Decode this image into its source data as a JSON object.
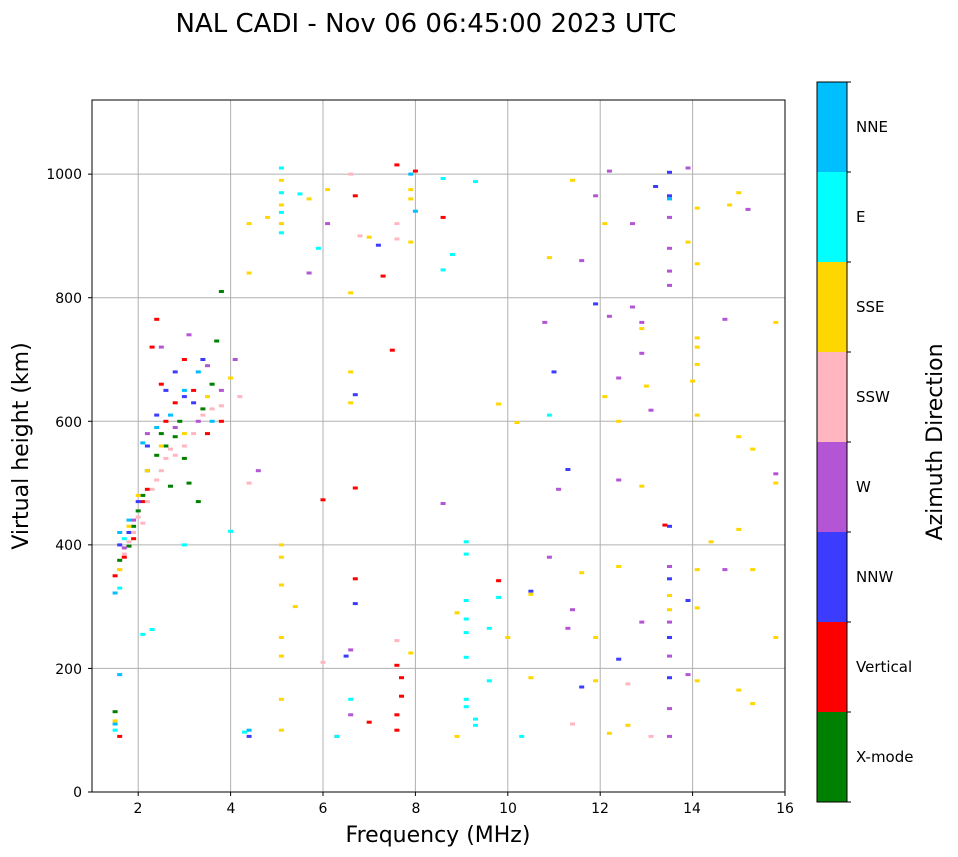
{
  "chart_data": {
    "type": "scatter",
    "title": "NAL CADI - Nov 06 06:45:00 2023 UTC",
    "xlabel": "Frequency (MHz)",
    "ylabel": "Virtual height (km)",
    "xlim": [
      1,
      16
    ],
    "ylim": [
      0,
      1120
    ],
    "xticks": [
      "2",
      "4",
      "6",
      "8",
      "10",
      "12",
      "14",
      "16"
    ],
    "yticks": [
      "0",
      "200",
      "400",
      "600",
      "800",
      "1000"
    ],
    "grid": true,
    "colorbar": {
      "label": "Azimuth Direction",
      "categories": [
        {
          "name": "X-mode",
          "color": "#008000"
        },
        {
          "name": "Vertical",
          "color": "#ff0000"
        },
        {
          "name": "NNW",
          "color": "#3c3cff"
        },
        {
          "name": "W",
          "color": "#b455d6"
        },
        {
          "name": "SSW",
          "color": "#ffb6c1"
        },
        {
          "name": "SSE",
          "color": "#ffd700"
        },
        {
          "name": "E",
          "color": "#00ffff"
        },
        {
          "name": "NNE",
          "color": "#00bfff"
        }
      ]
    },
    "series": [
      {
        "name": "X-mode",
        "points": [
          [
            1.5,
            130
          ],
          [
            1.6,
            375
          ],
          [
            1.8,
            398
          ],
          [
            1.9,
            430
          ],
          [
            2.0,
            455
          ],
          [
            2.1,
            480
          ],
          [
            2.2,
            520
          ],
          [
            2.4,
            545
          ],
          [
            2.5,
            580
          ],
          [
            2.6,
            560
          ],
          [
            2.7,
            495
          ],
          [
            2.8,
            575
          ],
          [
            2.9,
            600
          ],
          [
            3.0,
            540
          ],
          [
            3.1,
            500
          ],
          [
            3.3,
            470
          ],
          [
            3.4,
            620
          ],
          [
            3.6,
            660
          ],
          [
            3.8,
            810
          ],
          [
            3.7,
            730
          ]
        ]
      },
      {
        "name": "Vertical",
        "points": [
          [
            1.5,
            350
          ],
          [
            1.6,
            90
          ],
          [
            1.7,
            380
          ],
          [
            1.9,
            410
          ],
          [
            2.1,
            470
          ],
          [
            2.2,
            490
          ],
          [
            2.3,
            720
          ],
          [
            2.4,
            765
          ],
          [
            2.5,
            660
          ],
          [
            2.6,
            600
          ],
          [
            2.8,
            630
          ],
          [
            3.0,
            700
          ],
          [
            3.2,
            650
          ],
          [
            3.5,
            580
          ],
          [
            3.8,
            600
          ],
          [
            6.0,
            473
          ],
          [
            6.3,
            90
          ],
          [
            6.7,
            965
          ],
          [
            6.7,
            345
          ],
          [
            6.7,
            492
          ],
          [
            7.0,
            113
          ],
          [
            7.3,
            835
          ],
          [
            7.5,
            715
          ],
          [
            7.6,
            205
          ],
          [
            7.6,
            1015
          ],
          [
            7.7,
            155
          ],
          [
            7.7,
            185
          ],
          [
            7.6,
            100
          ],
          [
            7.6,
            125
          ],
          [
            8.0,
            1005
          ],
          [
            8.6,
            930
          ],
          [
            9.8,
            342
          ],
          [
            13.4,
            432
          ]
        ]
      },
      {
        "name": "NNW",
        "points": [
          [
            1.6,
            400
          ],
          [
            1.8,
            420
          ],
          [
            2.0,
            470
          ],
          [
            2.2,
            560
          ],
          [
            2.4,
            610
          ],
          [
            2.6,
            650
          ],
          [
            2.8,
            680
          ],
          [
            3.0,
            640
          ],
          [
            3.2,
            630
          ],
          [
            3.4,
            700
          ],
          [
            4.4,
            90
          ],
          [
            6.5,
            220
          ],
          [
            6.7,
            643
          ],
          [
            6.7,
            305
          ],
          [
            7.2,
            885
          ],
          [
            10.5,
            325
          ],
          [
            11.0,
            680
          ],
          [
            11.3,
            522
          ],
          [
            11.6,
            170
          ],
          [
            11.9,
            790
          ],
          [
            12.4,
            215
          ],
          [
            13.2,
            980
          ],
          [
            13.5,
            1003
          ],
          [
            13.5,
            965
          ],
          [
            13.5,
            345
          ],
          [
            13.5,
            250
          ],
          [
            13.5,
            185
          ],
          [
            13.5,
            430
          ],
          [
            13.9,
            310
          ]
        ]
      },
      {
        "name": "W",
        "points": [
          [
            1.7,
            395
          ],
          [
            1.9,
            440
          ],
          [
            2.2,
            580
          ],
          [
            2.5,
            720
          ],
          [
            2.8,
            590
          ],
          [
            3.1,
            740
          ],
          [
            3.3,
            600
          ],
          [
            3.5,
            690
          ],
          [
            3.8,
            650
          ],
          [
            4.1,
            700
          ],
          [
            4.6,
            520
          ],
          [
            5.7,
            840
          ],
          [
            6.1,
            920
          ],
          [
            6.6,
            125
          ],
          [
            6.6,
            230
          ],
          [
            8.6,
            467
          ],
          [
            10.8,
            760
          ],
          [
            10.9,
            380
          ],
          [
            11.1,
            490
          ],
          [
            11.3,
            265
          ],
          [
            11.4,
            295
          ],
          [
            11.6,
            860
          ],
          [
            11.9,
            965
          ],
          [
            12.2,
            1005
          ],
          [
            12.2,
            770
          ],
          [
            12.4,
            670
          ],
          [
            12.4,
            505
          ],
          [
            12.7,
            920
          ],
          [
            12.7,
            785
          ],
          [
            12.9,
            760
          ],
          [
            12.9,
            710
          ],
          [
            12.9,
            275
          ],
          [
            13.1,
            618
          ],
          [
            13.5,
            930
          ],
          [
            13.5,
            880
          ],
          [
            13.5,
            843
          ],
          [
            13.5,
            820
          ],
          [
            13.5,
            365
          ],
          [
            13.5,
            275
          ],
          [
            13.5,
            220
          ],
          [
            13.5,
            135
          ],
          [
            13.5,
            90
          ],
          [
            13.9,
            190
          ],
          [
            13.9,
            1010
          ],
          [
            14.7,
            360
          ],
          [
            14.7,
            765
          ],
          [
            15.2,
            943
          ],
          [
            15.8,
            515
          ]
        ]
      },
      {
        "name": "SSW",
        "points": [
          [
            1.6,
            360
          ],
          [
            1.7,
            385
          ],
          [
            1.8,
            405
          ],
          [
            1.9,
            420
          ],
          [
            2.0,
            445
          ],
          [
            2.1,
            435
          ],
          [
            2.2,
            470
          ],
          [
            2.3,
            490
          ],
          [
            2.4,
            505
          ],
          [
            2.5,
            520
          ],
          [
            2.6,
            540
          ],
          [
            2.7,
            555
          ],
          [
            2.8,
            545
          ],
          [
            3.0,
            560
          ],
          [
            3.2,
            580
          ],
          [
            3.4,
            610
          ],
          [
            3.6,
            620
          ],
          [
            3.8,
            625
          ],
          [
            4.2,
            640
          ],
          [
            4.4,
            500
          ],
          [
            6.0,
            210
          ],
          [
            6.6,
            1000
          ],
          [
            6.8,
            900
          ],
          [
            7.6,
            920
          ],
          [
            7.6,
            895
          ],
          [
            7.6,
            245
          ],
          [
            11.4,
            110
          ],
          [
            12.6,
            175
          ],
          [
            13.1,
            90
          ]
        ]
      },
      {
        "name": "SSE",
        "points": [
          [
            1.5,
            115
          ],
          [
            1.6,
            360
          ],
          [
            1.8,
            430
          ],
          [
            2.0,
            480
          ],
          [
            2.2,
            520
          ],
          [
            2.5,
            560
          ],
          [
            3.0,
            580
          ],
          [
            3.5,
            640
          ],
          [
            4.0,
            670
          ],
          [
            4.4,
            840
          ],
          [
            4.4,
            920
          ],
          [
            4.8,
            930
          ],
          [
            5.1,
            400
          ],
          [
            5.1,
            380
          ],
          [
            5.1,
            335
          ],
          [
            5.1,
            250
          ],
          [
            5.1,
            220
          ],
          [
            5.1,
            150
          ],
          [
            5.1,
            100
          ],
          [
            5.1,
            990
          ],
          [
            5.1,
            950
          ],
          [
            5.1,
            920
          ],
          [
            5.4,
            300
          ],
          [
            5.7,
            960
          ],
          [
            6.1,
            975
          ],
          [
            6.6,
            808
          ],
          [
            6.6,
            680
          ],
          [
            6.6,
            630
          ],
          [
            7.0,
            898
          ],
          [
            7.9,
            975
          ],
          [
            7.9,
            960
          ],
          [
            7.9,
            890
          ],
          [
            7.9,
            225
          ],
          [
            8.9,
            90
          ],
          [
            8.9,
            290
          ],
          [
            9.8,
            628
          ],
          [
            10.0,
            250
          ],
          [
            10.2,
            598
          ],
          [
            10.5,
            320
          ],
          [
            10.5,
            185
          ],
          [
            10.9,
            865
          ],
          [
            11.4,
            990
          ],
          [
            11.6,
            355
          ],
          [
            11.9,
            250
          ],
          [
            11.9,
            180
          ],
          [
            12.1,
            920
          ],
          [
            12.1,
            640
          ],
          [
            12.2,
            95
          ],
          [
            12.4,
            600
          ],
          [
            12.4,
            365
          ],
          [
            12.6,
            108
          ],
          [
            12.9,
            750
          ],
          [
            12.9,
            495
          ],
          [
            13.0,
            657
          ],
          [
            13.5,
            318
          ],
          [
            13.5,
            295
          ],
          [
            13.9,
            890
          ],
          [
            14.0,
            665
          ],
          [
            14.1,
            945
          ],
          [
            14.1,
            855
          ],
          [
            14.1,
            735
          ],
          [
            14.1,
            720
          ],
          [
            14.1,
            692
          ],
          [
            14.1,
            610
          ],
          [
            14.1,
            360
          ],
          [
            14.1,
            298
          ],
          [
            14.1,
            180
          ],
          [
            14.4,
            405
          ],
          [
            14.8,
            950
          ],
          [
            15.0,
            970
          ],
          [
            15.0,
            575
          ],
          [
            15.0,
            425
          ],
          [
            15.0,
            165
          ],
          [
            15.3,
            555
          ],
          [
            15.3,
            360
          ],
          [
            15.3,
            143
          ],
          [
            15.8,
            760
          ],
          [
            15.8,
            500
          ],
          [
            15.8,
            250
          ]
        ]
      },
      {
        "name": "E",
        "points": [
          [
            1.5,
            100
          ],
          [
            1.6,
            330
          ],
          [
            1.7,
            410
          ],
          [
            2.1,
            255
          ],
          [
            2.3,
            263
          ],
          [
            3.0,
            400
          ],
          [
            4.0,
            422
          ],
          [
            4.3,
            97
          ],
          [
            5.1,
            1010
          ],
          [
            5.1,
            970
          ],
          [
            5.1,
            938
          ],
          [
            5.1,
            905
          ],
          [
            5.5,
            968
          ],
          [
            5.9,
            880
          ],
          [
            6.3,
            90
          ],
          [
            6.6,
            150
          ],
          [
            8.6,
            993
          ],
          [
            8.6,
            845
          ],
          [
            8.8,
            870
          ],
          [
            9.1,
            405
          ],
          [
            9.1,
            385
          ],
          [
            9.1,
            310
          ],
          [
            9.1,
            280
          ],
          [
            9.1,
            258
          ],
          [
            9.1,
            218
          ],
          [
            9.1,
            150
          ],
          [
            9.1,
            138
          ],
          [
            9.3,
            118
          ],
          [
            9.3,
            108
          ],
          [
            9.3,
            988
          ],
          [
            9.6,
            180
          ],
          [
            9.6,
            265
          ],
          [
            9.8,
            315
          ],
          [
            10.3,
            90
          ],
          [
            10.9,
            610
          ]
        ]
      },
      {
        "name": "NNE",
        "points": [
          [
            1.5,
            322
          ],
          [
            1.5,
            110
          ],
          [
            1.6,
            190
          ],
          [
            1.6,
            420
          ],
          [
            1.8,
            440
          ],
          [
            2.1,
            565
          ],
          [
            2.4,
            590
          ],
          [
            2.7,
            610
          ],
          [
            3.0,
            650
          ],
          [
            3.3,
            680
          ],
          [
            3.6,
            600
          ],
          [
            4.4,
            100
          ],
          [
            7.9,
            1000
          ],
          [
            8.0,
            940
          ],
          [
            13.5,
            960
          ]
        ]
      }
    ]
  }
}
